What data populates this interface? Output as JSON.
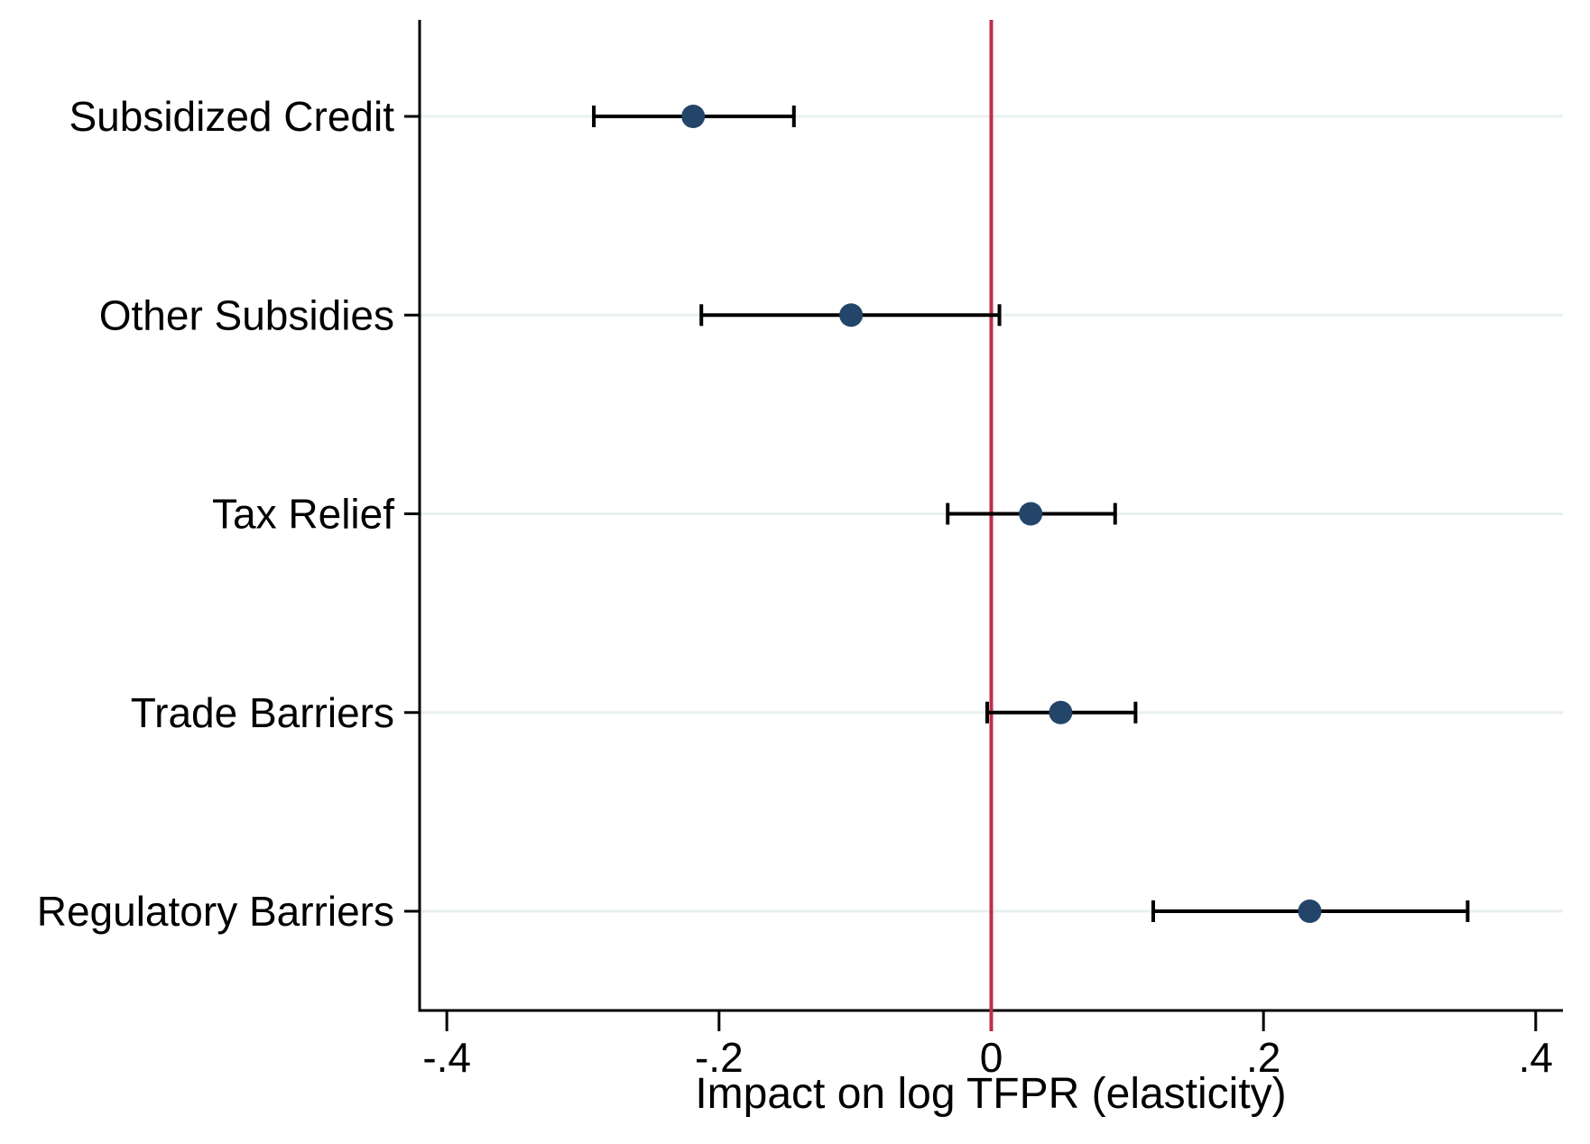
{
  "figure": {
    "kind": "statistical-coefficient-plot",
    "background_color": "#ffffff"
  },
  "chart_data": {
    "type": "scatter",
    "subtype": "horizontal-coefficient-plot-with-error-bars",
    "xlabel": "Impact on log TFPR (elasticity)",
    "ylabel": "",
    "xlim": [
      -0.42,
      0.42
    ],
    "x_ticks": [
      -0.4,
      -0.2,
      0,
      0.2,
      0.4
    ],
    "x_tick_labels": [
      "-.4",
      "-.2",
      "0",
      ".2",
      ".4"
    ],
    "grid": "horizontal gridlines on",
    "legend_position": "none",
    "categories": [
      "Subsidized Credit",
      "Other Subsidies",
      "Tax Relief",
      "Trade Barriers",
      "Regulatory Barriers"
    ],
    "series": [
      {
        "name": "Point estimate with confidence interval",
        "estimates": [
          -0.219,
          -0.103,
          0.029,
          0.051,
          0.234
        ],
        "ci_low": [
          -0.292,
          -0.213,
          -0.032,
          -0.003,
          0.119
        ],
        "ci_high": [
          -0.145,
          0.006,
          0.091,
          0.106,
          0.35
        ]
      }
    ],
    "zero_line": {
      "x": 0
    },
    "colors": {
      "marker": "#23456a",
      "errorbar": "#000000",
      "gridline": "#e9f0f2",
      "zero_line": "#bf2e4a",
      "axis": "#000000",
      "text": "#000000",
      "background": "#ffffff"
    }
  }
}
